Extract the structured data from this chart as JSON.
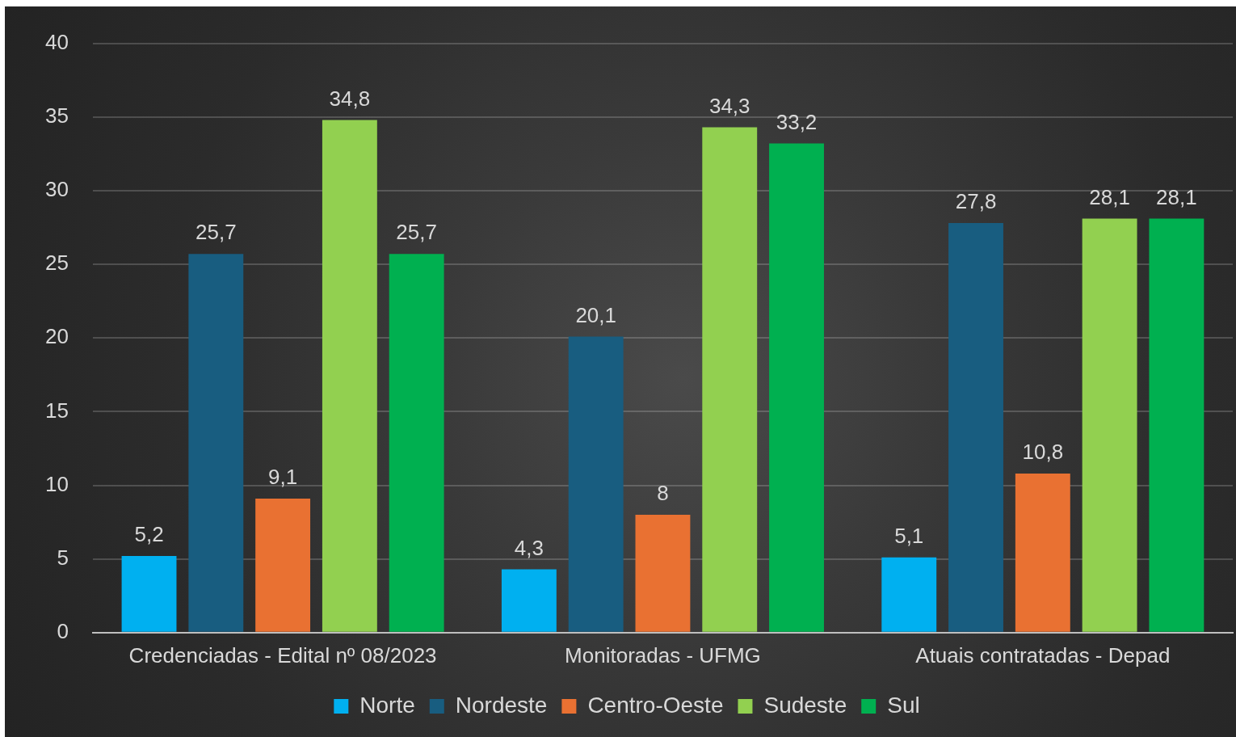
{
  "chart_data": {
    "type": "bar",
    "categories": [
      "Credenciadas - Edital nº 08/2023",
      "Monitoradas - UFMG",
      "Atuais contratadas - Depad"
    ],
    "series": [
      {
        "name": "Norte",
        "color": "#00b0f0",
        "values": [
          5.2,
          4.3,
          5.1
        ],
        "value_labels": [
          "5,2",
          "4,3",
          "5,1"
        ]
      },
      {
        "name": "Nordeste",
        "color": "#185d80",
        "values": [
          25.7,
          20.1,
          27.8
        ],
        "value_labels": [
          "25,7",
          "20,1",
          "27,8"
        ]
      },
      {
        "name": "Centro-Oeste",
        "color": "#e97132",
        "values": [
          9.1,
          8,
          10.8
        ],
        "value_labels": [
          "9,1",
          "8",
          "10,8"
        ]
      },
      {
        "name": "Sudeste",
        "color": "#92d050",
        "values": [
          34.8,
          34.3,
          28.1
        ],
        "value_labels": [
          "34,8",
          "34,3",
          "28,1"
        ]
      },
      {
        "name": "Sul",
        "color": "#00b050",
        "values": [
          25.7,
          33.2,
          28.1
        ],
        "value_labels": [
          "25,7",
          "33,2",
          "28,1"
        ]
      }
    ],
    "ylim": [
      0,
      40
    ],
    "yticks": [
      0,
      5,
      10,
      15,
      20,
      25,
      30,
      35,
      40
    ],
    "grid": "y",
    "legend": "bottom"
  }
}
